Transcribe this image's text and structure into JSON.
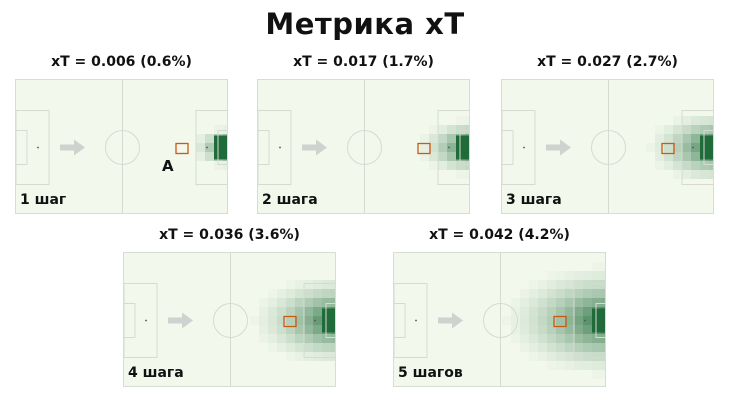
{
  "title": "Метрика xT",
  "point_label": "A",
  "panels": [
    {
      "metric": "xT  = 0.006 (0.6%)",
      "step": "1 шаг",
      "spread": 0.12
    },
    {
      "metric": "xT = 0.017 (1.7%)",
      "step": "2 шага",
      "spread": 0.3
    },
    {
      "metric": "xT = 0.027 (2.7%)",
      "step": "3 шага",
      "spread": 0.48
    },
    {
      "metric": "xT = 0.036 (3.6%)",
      "step": "4 шага",
      "spread": 0.68
    },
    {
      "metric": "xT = 0.042 (4.2%)",
      "step": "5 шагов",
      "spread": 0.9
    }
  ],
  "colors": {
    "field": "#f2f8ec",
    "line": "#d6dbd2",
    "heat_dark": "#1f6b3a",
    "arrow": "#cfd2cf",
    "square": "#c85a14"
  }
}
